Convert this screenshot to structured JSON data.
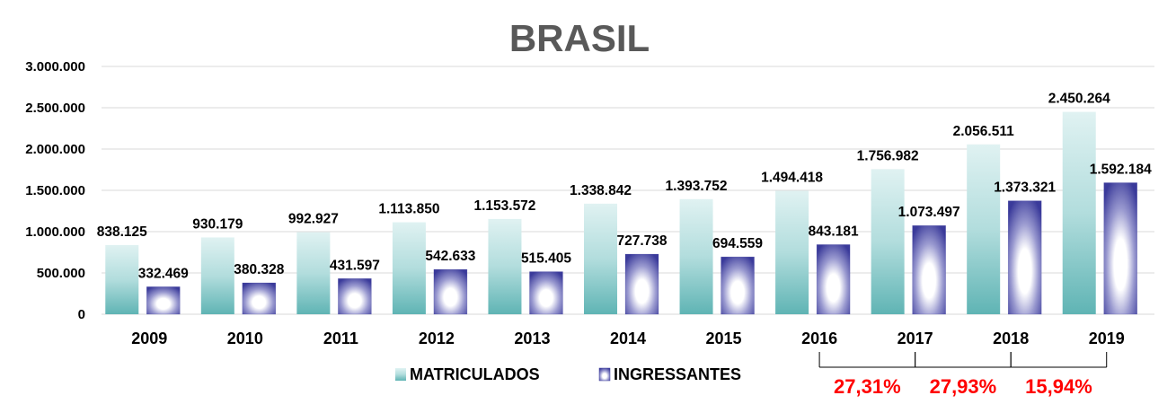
{
  "chart_data": {
    "type": "bar",
    "title": "BRASIL",
    "categories": [
      "2009",
      "2010",
      "2011",
      "2012",
      "2013",
      "2014",
      "2015",
      "2016",
      "2017",
      "2018",
      "2019"
    ],
    "series": [
      {
        "name": "MATRICULADOS",
        "values": [
          838125,
          930179,
          992927,
          1113850,
          1153572,
          1338842,
          1393752,
          1494418,
          1756982,
          2056511,
          2450264
        ],
        "labels": [
          "838.125",
          "930.179",
          "992.927",
          "1.113.850",
          "1.153.572",
          "1.338.842",
          "1.393.752",
          "1.494.418",
          "1.756.982",
          "2.056.511",
          "2.450.264"
        ],
        "color": "#5fb8b8"
      },
      {
        "name": "INGRESSANTES",
        "values": [
          332469,
          380328,
          431597,
          542633,
          515405,
          727738,
          694559,
          843181,
          1073497,
          1373321,
          1592184
        ],
        "labels": [
          "332.469",
          "380.328",
          "431.597",
          "542.633",
          "515.405",
          "727.738",
          "694.559",
          "843.181",
          "1.073.497",
          "1.373.321",
          "1.592.184"
        ],
        "color": "#3f3f9f"
      }
    ],
    "ylim": [
      0,
      3000000
    ],
    "yticks": [
      0,
      500000,
      1000000,
      1500000,
      2000000,
      2500000,
      3000000
    ],
    "ytick_labels": [
      "0",
      "500.000",
      "1.000.000",
      "1.500.000",
      "2.000.000",
      "2.500.000",
      "3.000.000"
    ],
    "grid": true,
    "legend_position": "bottom",
    "growth_annotations": [
      {
        "from": "2016",
        "to": "2017",
        "label": "27,31%"
      },
      {
        "from": "2017",
        "to": "2018",
        "label": "27,93%"
      },
      {
        "from": "2018",
        "to": "2019",
        "label": "15,94%"
      }
    ]
  }
}
